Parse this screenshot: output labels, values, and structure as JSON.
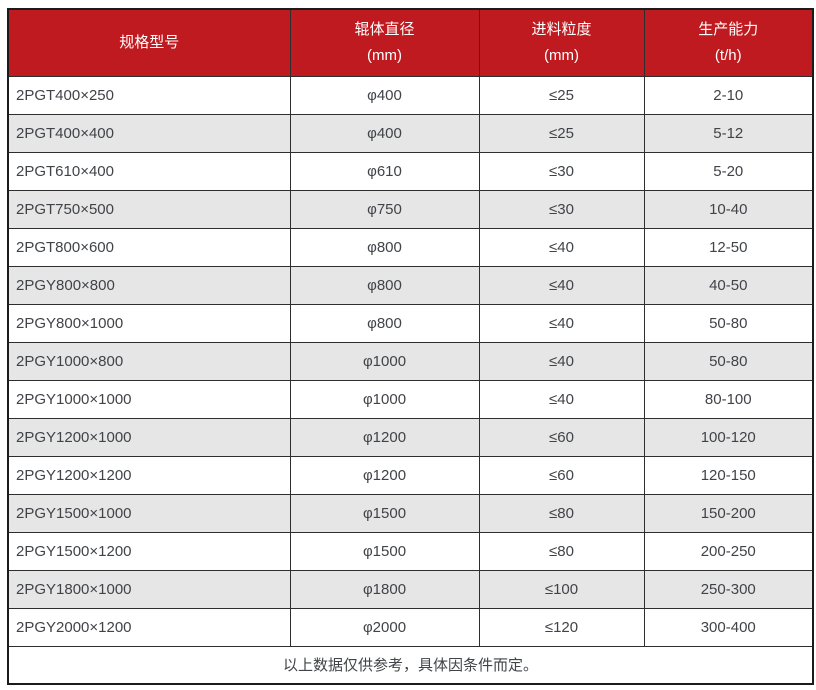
{
  "theme": {
    "header_bg": "#be1a1f",
    "header_text": "#ffffff",
    "row_alt_bg": "#e6e6e6",
    "row_bg": "#ffffff",
    "body_text": "#404347",
    "border_inner": "#2e2e2e",
    "border_outer": "#1b1b1b"
  },
  "table": {
    "columns": [
      {
        "line1": "规格型号",
        "line2": ""
      },
      {
        "line1": "辊体直径",
        "line2": "(mm)"
      },
      {
        "line1": "进料粒度",
        "line2": "(mm)"
      },
      {
        "line1": "生产能力",
        "line2": "(t/h)"
      }
    ],
    "rows": [
      [
        "2PGT400×250",
        "φ400",
        "≤25",
        "2-10"
      ],
      [
        "2PGT400×400",
        "φ400",
        "≤25",
        "5-12"
      ],
      [
        "2PGT610×400",
        "φ610",
        "≤30",
        "5-20"
      ],
      [
        "2PGT750×500",
        "φ750",
        "≤30",
        "10-40"
      ],
      [
        "2PGT800×600",
        "φ800",
        "≤40",
        "12-50"
      ],
      [
        "2PGY800×800",
        "φ800",
        "≤40",
        "40-50"
      ],
      [
        "2PGY800×1000",
        "φ800",
        "≤40",
        "50-80"
      ],
      [
        "2PGY1000×800",
        "φ1000",
        "≤40",
        "50-80"
      ],
      [
        "2PGY1000×1000",
        "φ1000",
        "≤40",
        "80-100"
      ],
      [
        "2PGY1200×1000",
        "φ1200",
        "≤60",
        "100-120"
      ],
      [
        "2PGY1200×1200",
        "φ1200",
        "≤60",
        "120-150"
      ],
      [
        "2PGY1500×1000",
        "φ1500",
        "≤80",
        "150-200"
      ],
      [
        "2PGY1500×1200",
        "φ1500",
        "≤80",
        "200-250"
      ],
      [
        "2PGY1800×1000",
        "φ1800",
        "≤100",
        "250-300"
      ],
      [
        "2PGY2000×1200",
        "φ2000",
        "≤120",
        "300-400"
      ]
    ],
    "footer_note": "以上数据仅供参考，具体因条件而定。"
  }
}
